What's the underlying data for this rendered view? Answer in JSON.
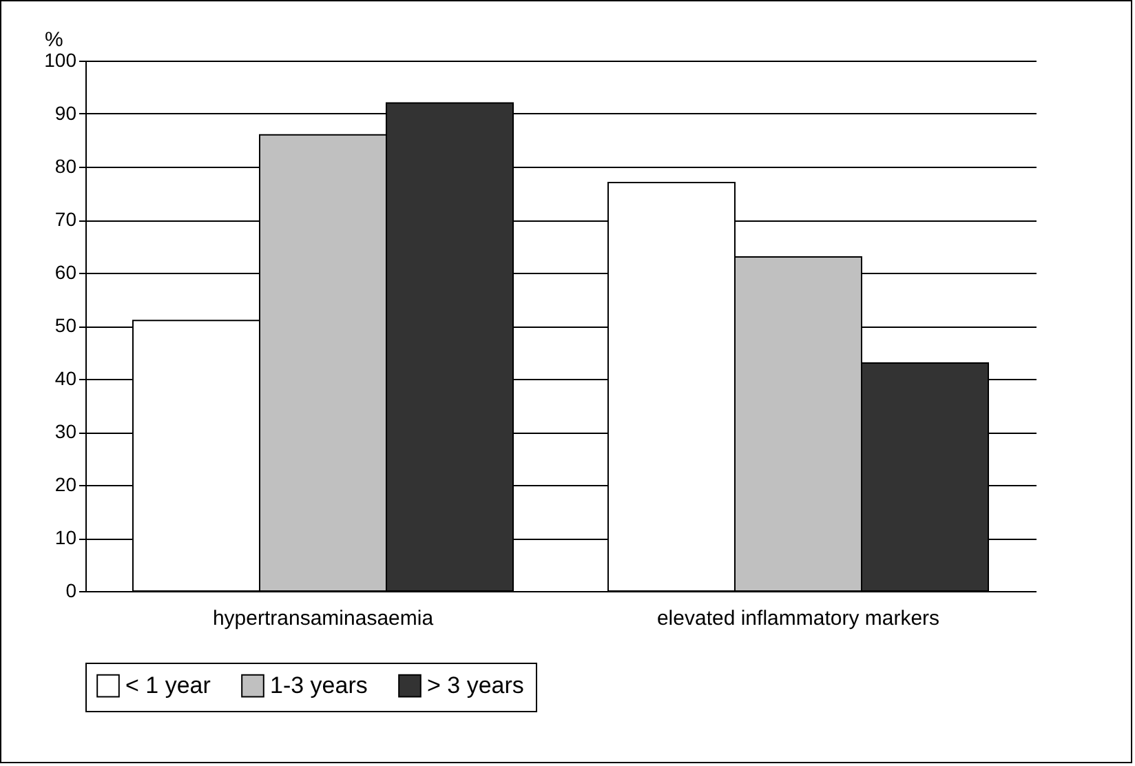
{
  "chart_data": {
    "type": "bar",
    "ylabel": "%",
    "categories": [
      "hypertransaminasaemia",
      "elevated inflammatory markers"
    ],
    "series": [
      {
        "name": "< 1 year",
        "color": "#ffffff",
        "values": [
          51,
          77
        ]
      },
      {
        "name": "1-3 years",
        "color": "#c0c0c0",
        "values": [
          86,
          63
        ]
      },
      {
        "name": "> 3 years",
        "color": "#333333",
        "values": [
          92,
          43
        ]
      }
    ],
    "ylim": [
      0,
      100
    ],
    "yticks": [
      0,
      10,
      20,
      30,
      40,
      50,
      60,
      70,
      80,
      90,
      100
    ],
    "grid": "y",
    "legend": "bottom"
  }
}
